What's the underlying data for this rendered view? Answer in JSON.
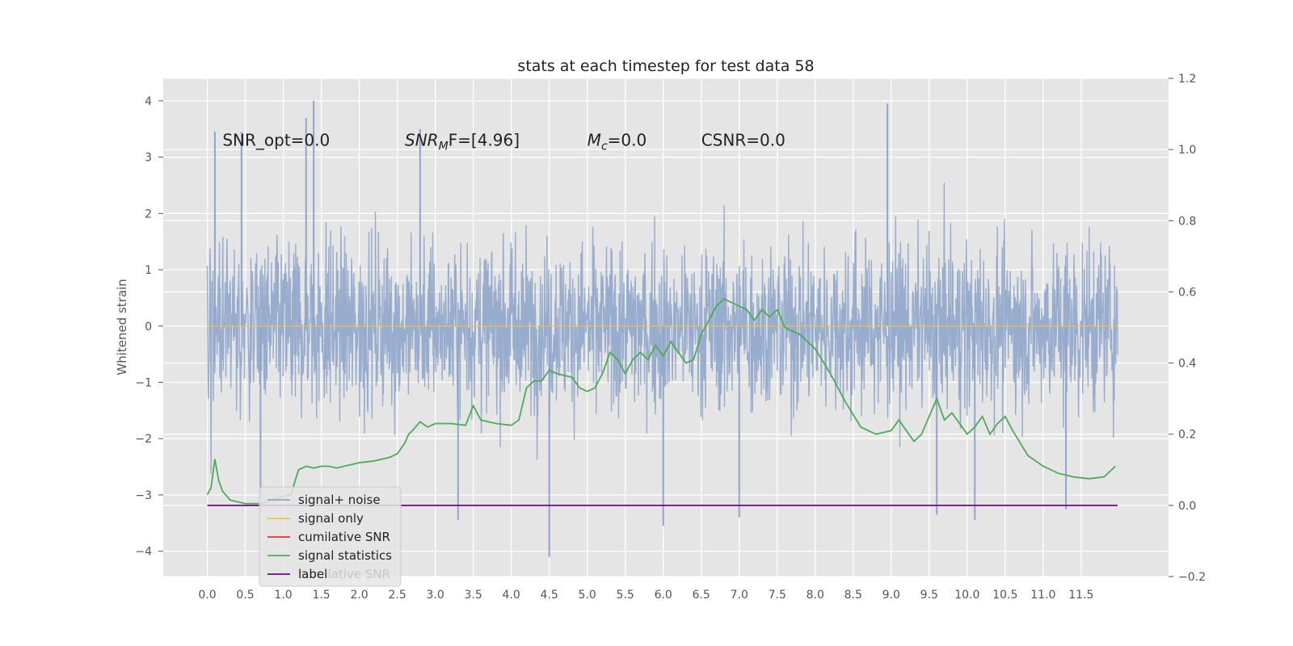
{
  "chart_data": {
    "type": "line",
    "title": "stats at each timestep for test data 58",
    "ylabel": "Whitened strain",
    "xlabel": "",
    "xlim": [
      -0.58,
      12.65
    ],
    "ylim": [
      -4.45,
      4.4
    ],
    "ylim_right": [
      -0.2,
      1.2
    ],
    "grid": true,
    "background": "#e5e5e5",
    "x_ticks": [
      "0.0",
      "0.5",
      "1.0",
      "1.5",
      "2.0",
      "2.5",
      "3.0",
      "3.5",
      "4.0",
      "4.5",
      "5.0",
      "5.5",
      "6.0",
      "6.5",
      "7.0",
      "7.5",
      "8.0",
      "8.5",
      "9.0",
      "9.5",
      "10.0",
      "10.5",
      "11.0",
      "11.5"
    ],
    "y_ticks_left": [
      -4,
      -3,
      -2,
      -1,
      0,
      1,
      2,
      3,
      4
    ],
    "y_ticks_left_labels": [
      "−4",
      "−3",
      "−2",
      "−1",
      "0",
      "1",
      "2",
      "3",
      "4"
    ],
    "y_ticks_right": [
      -0.2,
      0.0,
      0.2,
      0.4,
      0.6,
      0.8,
      1.0,
      1.2
    ],
    "y_ticks_right_labels": [
      "−0.2",
      "0.0",
      "0.2",
      "0.4",
      "0.6",
      "0.8",
      "1.0",
      "1.2"
    ],
    "annotations": [
      {
        "x": 0.2,
        "y": 3.2,
        "text": "SNR_opt=0.0"
      },
      {
        "x": 2.6,
        "y": 3.2,
        "text": "SNR",
        "sub": "M",
        "after": "F=[4.96]",
        "italic": true
      },
      {
        "x": 5.0,
        "y": 3.2,
        "text": "M",
        "sub": "c",
        "after": "=0.0",
        "italic": true
      },
      {
        "x": 6.5,
        "y": 3.2,
        "text": "CSNR=0.0"
      }
    ],
    "legend": {
      "placement": "lower-left",
      "entries": [
        {
          "label": "signal+ noise",
          "color": "#8fa5cb"
        },
        {
          "label": "signal only",
          "color": "#f5c13f"
        },
        {
          "label": "cumilative SNR",
          "color": "#d9382c"
        },
        {
          "label": "signal statistics",
          "color": "#4daa57"
        },
        {
          "label": "label",
          "color": "#6a0d83"
        }
      ],
      "hidden_label": "cumilative SNR"
    },
    "series": [
      {
        "name": "signal+ noise",
        "axis": "left",
        "color": "#8fa5cb",
        "kind": "noise",
        "x_range": [
          0.0,
          11.98
        ],
        "envelope": [
          -2.0,
          2.0
        ],
        "peaks": [
          [
            0.1,
            3.45
          ],
          [
            0.45,
            3.45
          ],
          [
            1.3,
            3.7
          ],
          [
            1.4,
            4.0
          ],
          [
            2.8,
            3.5
          ],
          [
            8.95,
            3.95
          ],
          [
            4.5,
            -4.1
          ],
          [
            6.0,
            -3.55
          ],
          [
            10.1,
            -3.45
          ],
          [
            3.3,
            -3.45
          ],
          [
            11.3,
            -3.25
          ],
          [
            9.6,
            -3.35
          ],
          [
            0.7,
            -3.3
          ],
          [
            7.0,
            -3.4
          ]
        ]
      },
      {
        "name": "signal only",
        "axis": "left",
        "color": "#f5c13f",
        "x": [
          0.0,
          11.98
        ],
        "values": [
          0.0,
          0.0
        ]
      },
      {
        "name": "signal statistics",
        "axis": "right",
        "color": "#4daa57",
        "x": [
          0.0,
          0.05,
          0.1,
          0.15,
          0.2,
          0.3,
          0.5,
          0.7,
          0.9,
          1.1,
          1.2,
          1.3,
          1.4,
          1.5,
          1.6,
          1.7,
          1.8,
          1.9,
          2.0,
          2.2,
          2.4,
          2.5,
          2.6,
          2.65,
          2.7,
          2.8,
          2.9,
          3.0,
          3.2,
          3.4,
          3.5,
          3.6,
          3.8,
          4.0,
          4.1,
          4.2,
          4.3,
          4.4,
          4.5,
          4.6,
          4.7,
          4.8,
          4.9,
          5.0,
          5.1,
          5.2,
          5.3,
          5.4,
          5.5,
          5.6,
          5.7,
          5.8,
          5.9,
          6.0,
          6.1,
          6.2,
          6.3,
          6.4,
          6.5,
          6.6,
          6.7,
          6.8,
          6.9,
          7.0,
          7.1,
          7.2,
          7.3,
          7.4,
          7.5,
          7.6,
          7.7,
          7.8,
          7.9,
          8.0,
          8.2,
          8.4,
          8.6,
          8.8,
          9.0,
          9.1,
          9.2,
          9.3,
          9.4,
          9.5,
          9.6,
          9.7,
          9.8,
          10.0,
          10.1,
          10.2,
          10.3,
          10.4,
          10.5,
          10.6,
          10.8,
          11.0,
          11.2,
          11.4,
          11.6,
          11.8,
          11.95
        ],
        "values": [
          0.03,
          0.05,
          0.13,
          0.07,
          0.04,
          0.015,
          0.005,
          0.005,
          0.02,
          0.03,
          0.1,
          0.11,
          0.105,
          0.11,
          0.11,
          0.105,
          0.11,
          0.115,
          0.12,
          0.125,
          0.135,
          0.145,
          0.175,
          0.2,
          0.21,
          0.235,
          0.22,
          0.23,
          0.23,
          0.225,
          0.28,
          0.24,
          0.23,
          0.225,
          0.24,
          0.33,
          0.35,
          0.35,
          0.38,
          0.37,
          0.365,
          0.36,
          0.33,
          0.32,
          0.33,
          0.37,
          0.43,
          0.41,
          0.37,
          0.41,
          0.43,
          0.41,
          0.45,
          0.42,
          0.46,
          0.43,
          0.4,
          0.41,
          0.48,
          0.52,
          0.56,
          0.58,
          0.57,
          0.56,
          0.55,
          0.52,
          0.55,
          0.53,
          0.55,
          0.5,
          0.49,
          0.48,
          0.46,
          0.44,
          0.37,
          0.29,
          0.22,
          0.2,
          0.21,
          0.24,
          0.21,
          0.18,
          0.2,
          0.25,
          0.3,
          0.24,
          0.26,
          0.2,
          0.22,
          0.25,
          0.2,
          0.23,
          0.25,
          0.21,
          0.14,
          0.11,
          0.09,
          0.08,
          0.075,
          0.08,
          0.11
        ]
      },
      {
        "name": "label",
        "axis": "right",
        "color": "#6a0d83",
        "x": [
          0.0,
          11.98
        ],
        "values": [
          0.0,
          0.0
        ]
      }
    ]
  }
}
